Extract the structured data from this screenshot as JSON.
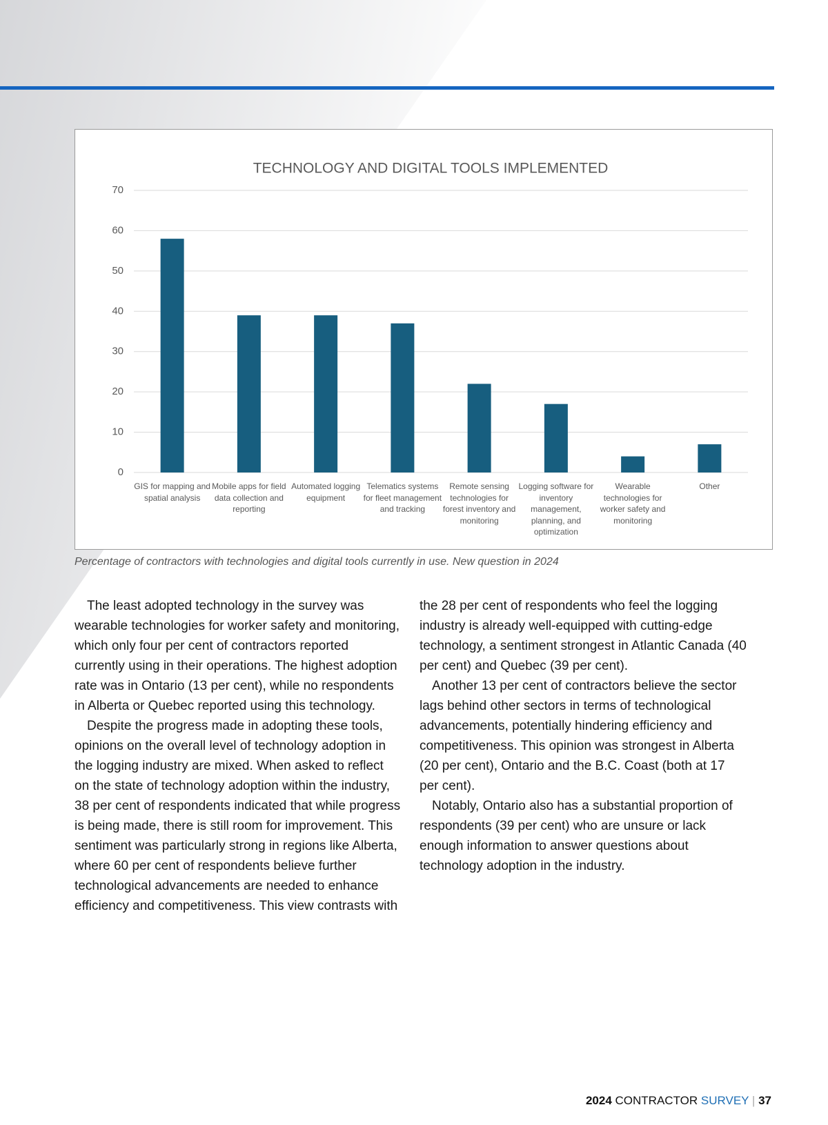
{
  "chart_data": {
    "type": "bar",
    "title": "TECHNOLOGY AND DIGITAL TOOLS IMPLEMENTED",
    "categories": [
      "GIS for mapping and spatial analysis",
      "Mobile apps for field data collection and reporting",
      "Automated logging equipment",
      "Telematics systems for fleet management and tracking",
      "Remote sensing technologies for forest inventory and monitoring",
      "Logging software for inventory management, planning, and optimization",
      "Wearable technologies for worker safety and monitoring",
      "Other"
    ],
    "values": [
      58,
      39,
      39,
      37,
      22,
      17,
      4,
      7
    ],
    "color": "#175e7f",
    "ylim": [
      0,
      70
    ],
    "yticks": [
      0,
      10,
      20,
      30,
      40,
      50,
      60,
      70
    ],
    "grid": true
  },
  "caption": "Percentage of contractors with technologies and digital tools currently in use. New question in 2024",
  "paragraphs": [
    "The least adopted technology in the survey was wearable technologies for worker safety and monitoring, which only four per cent of contractors reported currently using in their operations. The highest adoption rate was in Ontario (13 per cent), while no respondents in Alberta or Quebec reported using this technology.",
    "Despite the progress made in adopting these tools, opinions on the overall level of technology adoption in the logging industry are mixed. When asked to reflect on the state of technology adoption within the industry, 38 per cent of respondents indicated that while progress is being made, there is still room for improvement. This sentiment was particularly strong in regions like Alberta, where 60 per cent of respondents believe further technological advancements are needed to enhance efficiency and competitiveness. This view contrasts with the 28 per cent of respondents who feel the logging industry is already well-equipped with cutting-edge technology, a sentiment strongest in Atlantic Canada (40 per cent) and Quebec (39 per cent).",
    "Another 13 per cent of contractors believe the sector lags behind other sectors in terms of technological advancements, potentially hindering efficiency and competitiveness. This opinion was strongest in Alberta (20 per cent), Ontario and the B.C. Coast (both at 17 per cent).",
    "Notably, Ontario also has a substantial proportion of respondents (39 per cent) who are unsure or lack enough information to answer questions about technology adoption in the industry."
  ],
  "footer": {
    "year": "2024",
    "title": "CONTRACTOR",
    "subtitle": "SURVEY",
    "page": "37"
  }
}
